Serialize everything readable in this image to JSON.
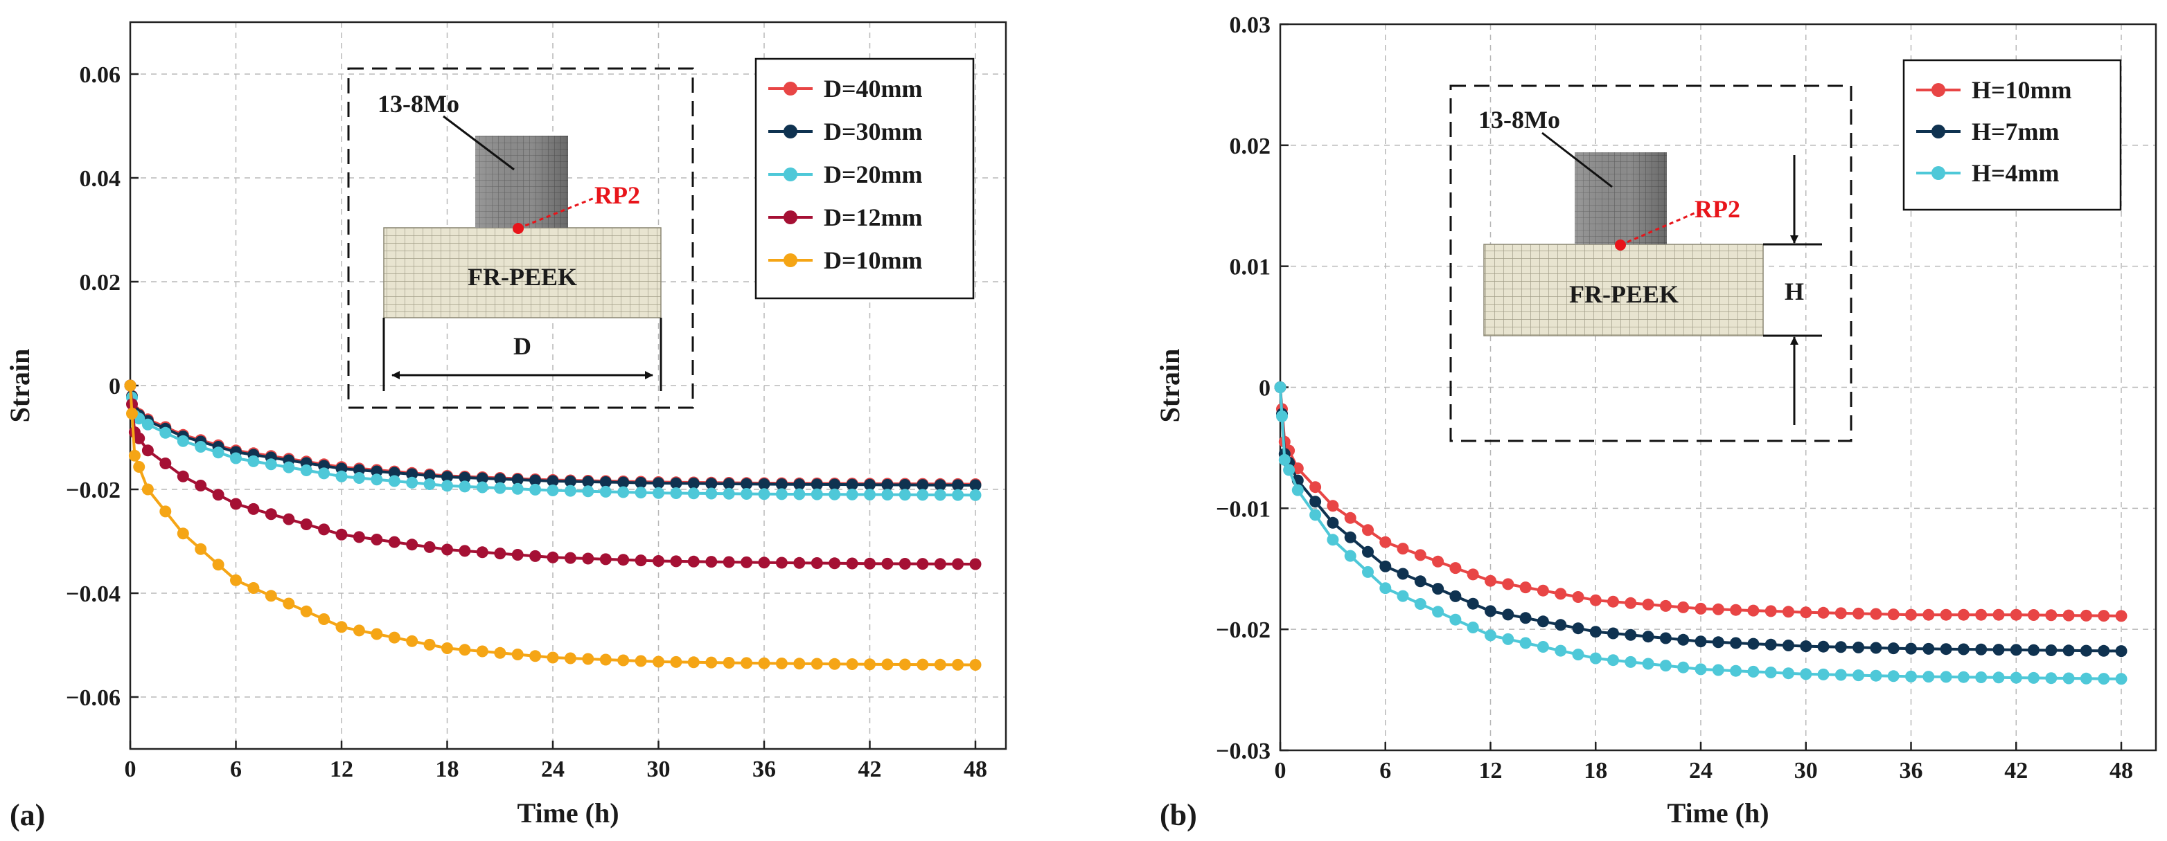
{
  "chart_data": [
    {
      "type": "line",
      "panel_label": "(a)",
      "xlabel": "Time (h)",
      "ylabel": "Strain",
      "xlim": [
        0,
        48
      ],
      "ylim": [
        -0.07,
        0.07
      ],
      "xticks": [
        0,
        6,
        12,
        18,
        24,
        30,
        36,
        42,
        48
      ],
      "xtick_labels": [
        "0",
        "6",
        "12",
        "18",
        "24",
        "30",
        "36",
        "42",
        "48"
      ],
      "yticks": [
        -0.06,
        -0.04,
        -0.02,
        0,
        0.02,
        0.04,
        0.06
      ],
      "ytick_labels": [
        "−0.06",
        "−0.04",
        "−0.02",
        "0",
        "0.02",
        "0.04",
        "0.06"
      ],
      "grid": true,
      "legend_position": "top-right",
      "series": [
        {
          "name": "D=40mm",
          "color": "#e84545",
          "x": [
            0,
            0.25,
            1,
            3,
            6,
            12,
            18,
            24,
            30,
            36,
            42,
            48
          ],
          "y": [
            0,
            -0.005,
            -0.0065,
            -0.0095,
            -0.0125,
            -0.0157,
            -0.0174,
            -0.0182,
            -0.0186,
            -0.0188,
            -0.0189,
            -0.019
          ]
        },
        {
          "name": "D=30mm",
          "color": "#0f3250",
          "x": [
            0,
            0.25,
            1,
            3,
            6,
            12,
            18,
            24,
            30,
            36,
            42,
            48
          ],
          "y": [
            0,
            -0.0052,
            -0.0068,
            -0.0098,
            -0.0128,
            -0.016,
            -0.0176,
            -0.0184,
            -0.0188,
            -0.019,
            -0.0191,
            -0.0192
          ]
        },
        {
          "name": "D=20mm",
          "color": "#4ec8d8",
          "x": [
            0,
            0.25,
            1,
            3,
            6,
            12,
            18,
            24,
            30,
            36,
            42,
            48
          ],
          "y": [
            0,
            -0.0058,
            -0.0075,
            -0.0107,
            -0.014,
            -0.0175,
            -0.0193,
            -0.0202,
            -0.0207,
            -0.0209,
            -0.021,
            -0.0211
          ]
        },
        {
          "name": "D=12mm",
          "color": "#a51034",
          "x": [
            0,
            0.25,
            1,
            3,
            6,
            12,
            18,
            24,
            30,
            36,
            42,
            48
          ],
          "y": [
            0,
            -0.009,
            -0.0125,
            -0.0175,
            -0.0228,
            -0.0287,
            -0.0316,
            -0.0331,
            -0.0338,
            -0.0341,
            -0.0343,
            -0.0344
          ]
        },
        {
          "name": "D=10mm",
          "color": "#f5a515",
          "x": [
            0,
            0.25,
            1,
            3,
            6,
            12,
            18,
            24,
            30,
            36,
            42,
            48
          ],
          "y": [
            0,
            -0.0135,
            -0.02,
            -0.0285,
            -0.0375,
            -0.0465,
            -0.0506,
            -0.0524,
            -0.0532,
            -0.0535,
            -0.0537,
            -0.0538
          ]
        }
      ],
      "inset": {
        "material_top": "13-8Mo",
        "material_bottom": "FR-PEEK",
        "point_label": "RP2",
        "dimension_label": "D"
      }
    },
    {
      "type": "line",
      "panel_label": "(b)",
      "xlabel": "Time (h)",
      "ylabel": "Strain",
      "xlim": [
        0,
        48
      ],
      "ylim": [
        -0.03,
        0.03
      ],
      "xticks": [
        0,
        6,
        12,
        18,
        24,
        30,
        36,
        42,
        48
      ],
      "xtick_labels": [
        "0",
        "6",
        "12",
        "18",
        "24",
        "30",
        "36",
        "42",
        "48"
      ],
      "yticks": [
        -0.03,
        -0.02,
        -0.01,
        0,
        0.01,
        0.02,
        0.03
      ],
      "ytick_labels": [
        "−0.03",
        "−0.02",
        "−0.01",
        "0",
        "0.01",
        "0.02",
        "0.03"
      ],
      "grid": true,
      "legend_position": "top-right",
      "series": [
        {
          "name": "H=10mm",
          "color": "#e84545",
          "x": [
            0,
            0.25,
            1,
            3,
            6,
            12,
            18,
            24,
            30,
            36,
            42,
            48
          ],
          "y": [
            0,
            -0.0045,
            -0.0067,
            -0.0098,
            -0.0128,
            -0.016,
            -0.0176,
            -0.0183,
            -0.0186,
            -0.0188,
            -0.0188,
            -0.0189
          ]
        },
        {
          "name": "H=7mm",
          "color": "#0f3250",
          "x": [
            0,
            0.25,
            1,
            3,
            6,
            12,
            18,
            24,
            30,
            36,
            42,
            48
          ],
          "y": [
            0,
            -0.0055,
            -0.0077,
            -0.0112,
            -0.0148,
            -0.0185,
            -0.0202,
            -0.021,
            -0.0214,
            -0.0216,
            -0.0217,
            -0.0218
          ]
        },
        {
          "name": "H=4mm",
          "color": "#4ec8d8",
          "x": [
            0,
            0.25,
            1,
            3,
            6,
            12,
            18,
            24,
            30,
            36,
            42,
            48
          ],
          "y": [
            0,
            -0.006,
            -0.0085,
            -0.0126,
            -0.0166,
            -0.0205,
            -0.0224,
            -0.0233,
            -0.0237,
            -0.0239,
            -0.024,
            -0.0241
          ]
        }
      ],
      "inset": {
        "material_top": "13-8Mo",
        "material_bottom": "FR-PEEK",
        "point_label": "RP2",
        "dimension_label": "H"
      }
    }
  ]
}
